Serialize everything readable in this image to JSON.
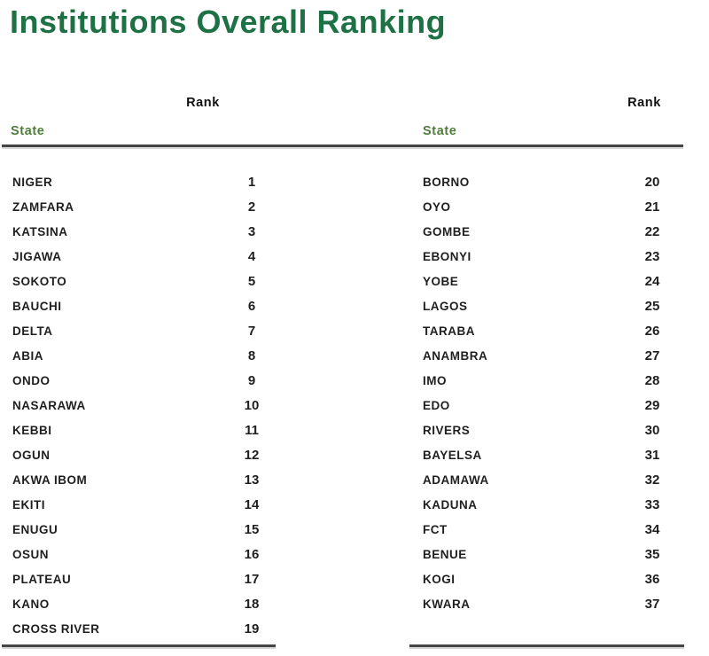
{
  "page": {
    "title": "Institutions Overall Ranking"
  },
  "colors": {
    "title_green": "#1e7145",
    "state_header_green": "#4f7d3a",
    "text_dark": "#1f1f1f",
    "divider_gray": "#454545",
    "background": "#ffffff"
  },
  "tables": [
    {
      "rank_header": "Rank",
      "state_header": "State",
      "rows": [
        {
          "state": "NIGER",
          "rank": "1"
        },
        {
          "state": "ZAMFARA",
          "rank": "2"
        },
        {
          "state": "KATSINA",
          "rank": "3"
        },
        {
          "state": "JIGAWA",
          "rank": "4"
        },
        {
          "state": "SOKOTO",
          "rank": "5"
        },
        {
          "state": "BAUCHI",
          "rank": "6"
        },
        {
          "state": "DELTA",
          "rank": "7"
        },
        {
          "state": "ABIA",
          "rank": "8"
        },
        {
          "state": "ONDO",
          "rank": "9"
        },
        {
          "state": "NASARAWA",
          "rank": "10"
        },
        {
          "state": "KEBBI",
          "rank": "11"
        },
        {
          "state": "OGUN",
          "rank": "12"
        },
        {
          "state": "AKWA IBOM",
          "rank": "13"
        },
        {
          "state": "EKITI",
          "rank": "14"
        },
        {
          "state": "ENUGU",
          "rank": "15"
        },
        {
          "state": "OSUN",
          "rank": "16"
        },
        {
          "state": "PLATEAU",
          "rank": "17"
        },
        {
          "state": "KANO",
          "rank": "18"
        },
        {
          "state": "CROSS RIVER",
          "rank": "19"
        }
      ]
    },
    {
      "rank_header": "Rank",
      "state_header": "State",
      "rows": [
        {
          "state": "BORNO",
          "rank": "20"
        },
        {
          "state": "OYO",
          "rank": "21"
        },
        {
          "state": "GOMBE",
          "rank": "22"
        },
        {
          "state": "EBONYI",
          "rank": "23"
        },
        {
          "state": "YOBE",
          "rank": "24"
        },
        {
          "state": "LAGOS",
          "rank": "25"
        },
        {
          "state": "TARABA",
          "rank": "26"
        },
        {
          "state": "ANAMBRA",
          "rank": "27"
        },
        {
          "state": "IMO",
          "rank": "28"
        },
        {
          "state": "EDO",
          "rank": "29"
        },
        {
          "state": "RIVERS",
          "rank": "30"
        },
        {
          "state": "BAYELSA",
          "rank": "31"
        },
        {
          "state": "ADAMAWA",
          "rank": "32"
        },
        {
          "state": "KADUNA",
          "rank": "33"
        },
        {
          "state": "FCT",
          "rank": "34"
        },
        {
          "state": "BENUE",
          "rank": "35"
        },
        {
          "state": "KOGI",
          "rank": "36"
        },
        {
          "state": "KWARA",
          "rank": "37"
        }
      ]
    }
  ]
}
